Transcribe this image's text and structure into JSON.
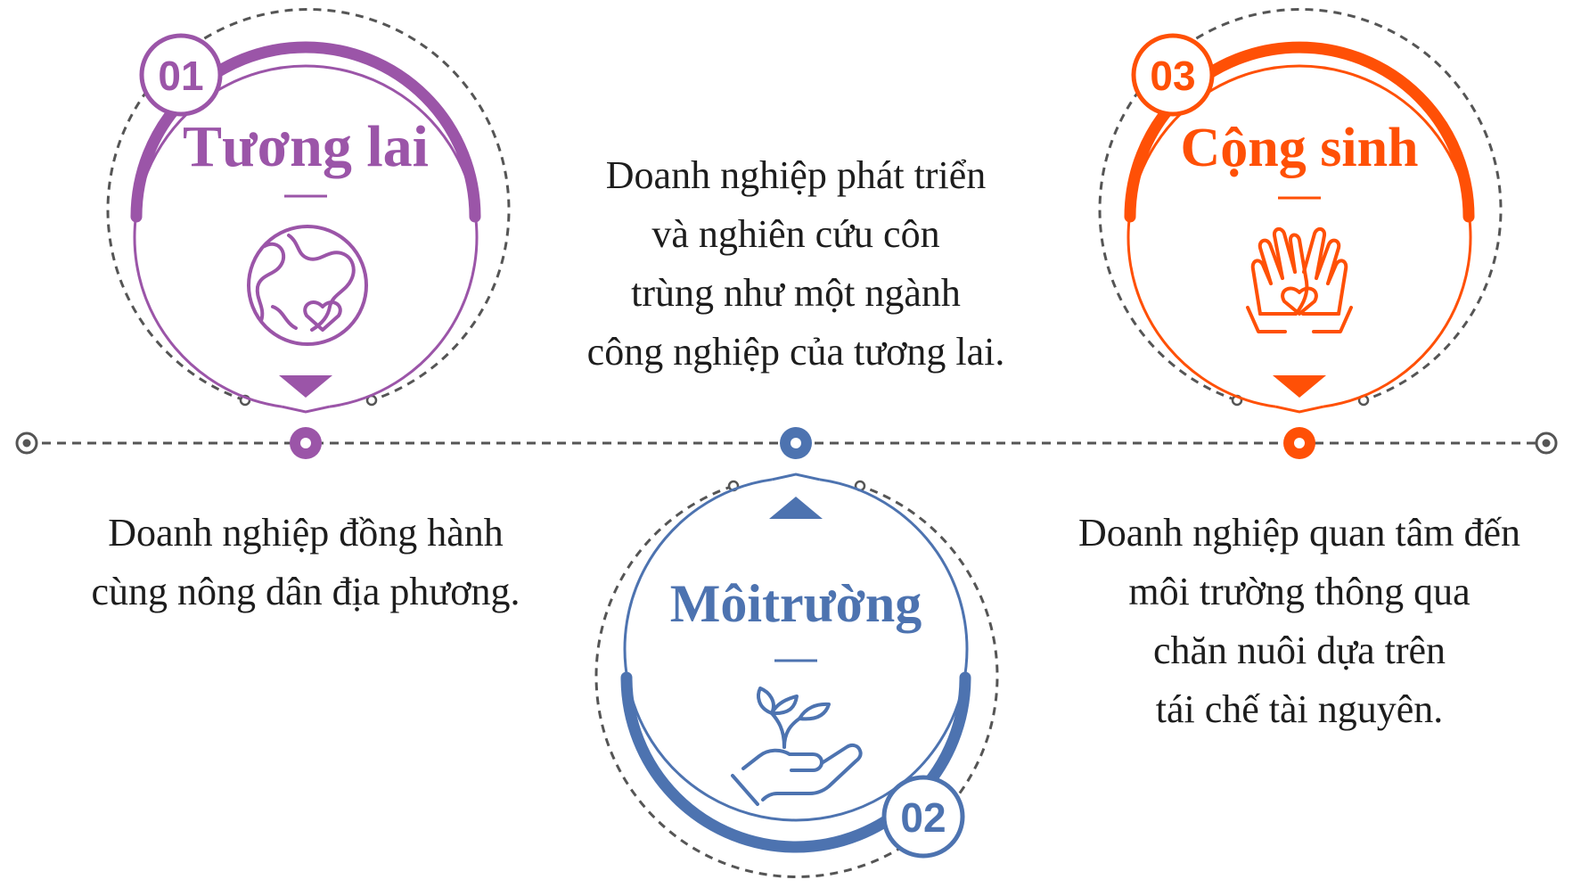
{
  "colors": {
    "purple": "#9b55a8",
    "blue": "#4d73b0",
    "orange": "#ff5006",
    "gray": "#555555",
    "text": "#1d1d1d"
  },
  "steps": [
    {
      "number": "01",
      "title": "Tương lai",
      "icon": "globe-heart-icon",
      "color": "#9b55a8",
      "description": [
        "Doanh nghiệp đồng hành",
        "cùng nông dân địa phương."
      ]
    },
    {
      "number": "02",
      "title": "Môitrường",
      "icon": "hand-sprout-icon",
      "color": "#4d73b0",
      "description": [
        "Doanh nghiệp phát triển",
        "và nghiên cứu côn",
        "trùng như một ngành",
        "công nghiệp của tương lai."
      ]
    },
    {
      "number": "03",
      "title": "Cộng sinh",
      "icon": "hands-heart-icon",
      "color": "#ff5006",
      "description": [
        "Doanh nghiệp quan tâm đến",
        "môi trường thông qua",
        "chăn nuôi dựa trên",
        "tái chế tài nguyên."
      ]
    }
  ]
}
